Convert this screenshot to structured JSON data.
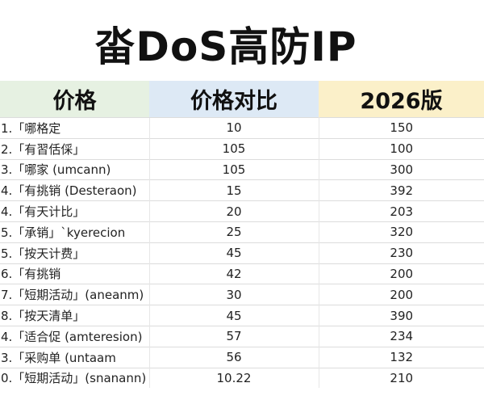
{
  "title": "畓DoS高防IP",
  "table": {
    "header": [
      "价格",
      "价格对比",
      "2026版"
    ],
    "rows": [
      [
        "1.「哪格定",
        10,
        150
      ],
      [
        "2.「有習佸倸」",
        105,
        100
      ],
      [
        "3.「哪家 (umcann)",
        105,
        300
      ],
      [
        "4.「有挑销 (Desteraon)",
        15,
        392
      ],
      [
        "4.「有天计比」",
        20,
        203
      ],
      [
        "5.「承销」`kyerecion",
        25,
        320
      ],
      [
        "5.「按天计费」",
        45,
        230
      ],
      [
        "6.「有挑销",
        42,
        200
      ],
      [
        "7.「短期活动」(aneanm)",
        30,
        200
      ],
      [
        "8.「按天清单」",
        45,
        390
      ],
      [
        "4.「适合促 (amteresion)",
        57,
        234
      ],
      [
        "3.「采购单 (untaam",
        56,
        132
      ],
      [
        "0.「短期活动」(snanann)",
        10.22,
        210
      ]
    ]
  }
}
